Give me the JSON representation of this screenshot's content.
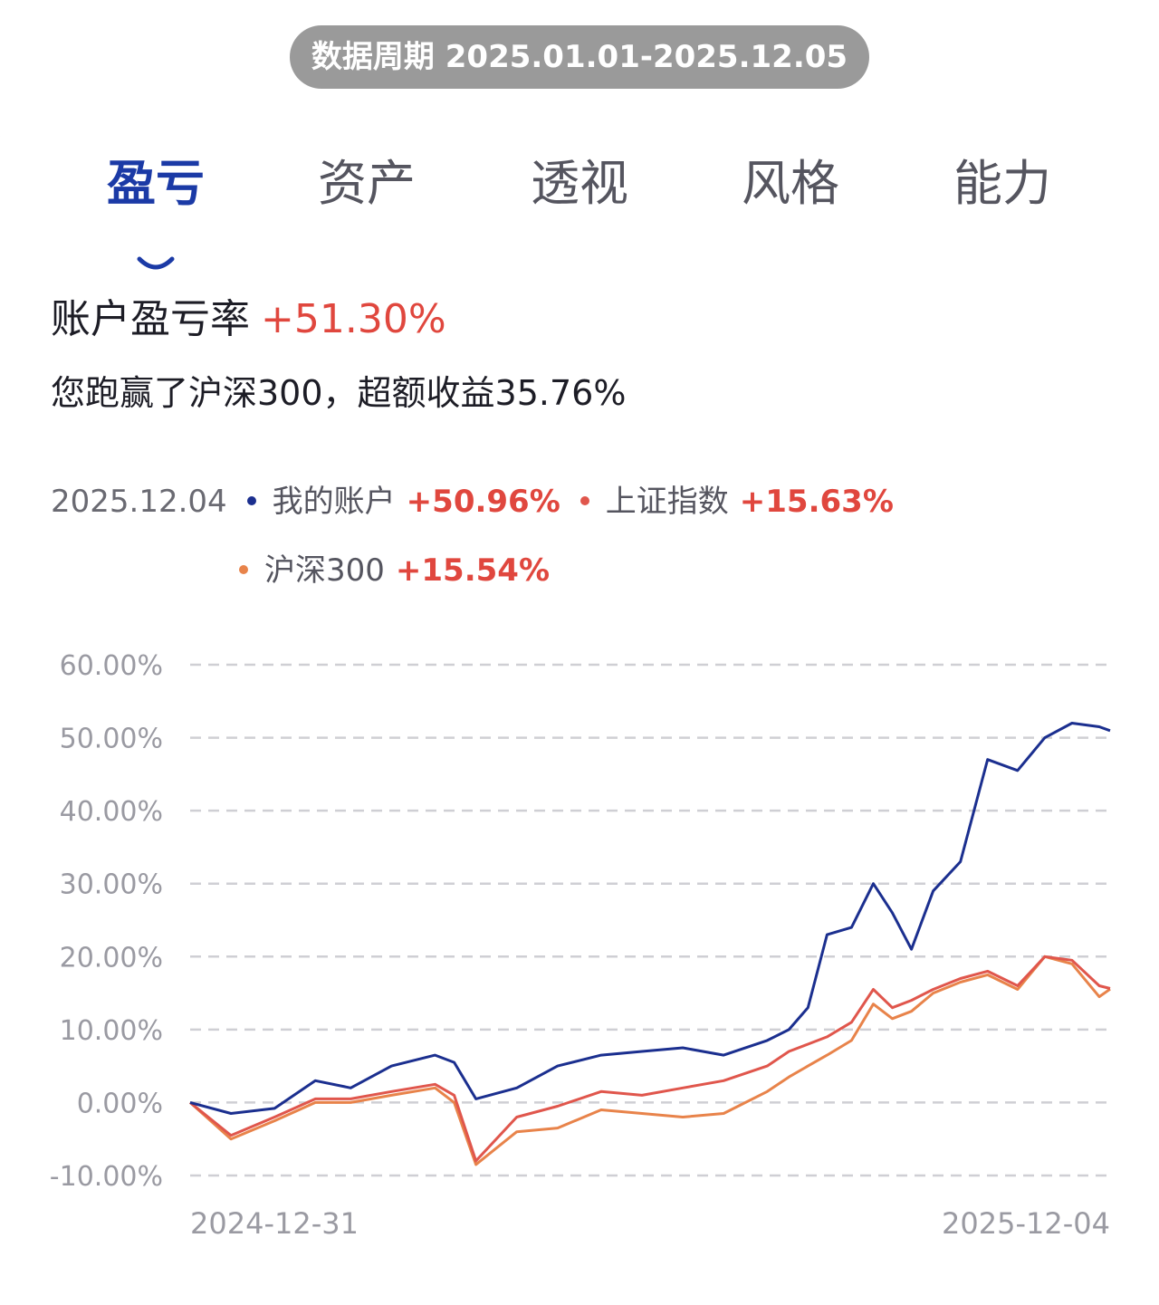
{
  "header": {
    "period_label": "数据周期 2025.01.01-2025.12.05"
  },
  "tabs": [
    {
      "label": "盈亏",
      "active": true
    },
    {
      "label": "资产",
      "active": false
    },
    {
      "label": "透视",
      "active": false
    },
    {
      "label": "风格",
      "active": false
    },
    {
      "label": "能力",
      "active": false
    }
  ],
  "summary": {
    "label": "账户盈亏率",
    "value": "+51.30%",
    "comparison": "您跑赢了沪深300，超额收益35.76%"
  },
  "legend": {
    "date": "2025.12.04",
    "items": [
      {
        "name": "我的账户",
        "value": "+50.96%",
        "color": "#1b2f8f"
      },
      {
        "name": "上证指数",
        "value": "+15.63%",
        "color": "#e0564c"
      },
      {
        "name": "沪深300",
        "value": "+15.54%",
        "color": "#e8834a"
      }
    ]
  },
  "colors": {
    "accent": "#1b3aa6",
    "positive": "#e0473e",
    "grid": "#cfcfd4",
    "axis_text": "#9a9aa2"
  },
  "chart_data": {
    "type": "line",
    "x": [
      "2024-12-31",
      "2025-01-15",
      "2025-01-31",
      "2025-02-15",
      "2025-02-28",
      "2025-03-15",
      "2025-03-31",
      "2025-04-07",
      "2025-04-15",
      "2025-04-30",
      "2025-05-15",
      "2025-05-31",
      "2025-06-15",
      "2025-06-30",
      "2025-07-15",
      "2025-07-31",
      "2025-08-08",
      "2025-08-15",
      "2025-08-22",
      "2025-08-31",
      "2025-09-08",
      "2025-09-15",
      "2025-09-22",
      "2025-09-30",
      "2025-10-10",
      "2025-10-20",
      "2025-10-31",
      "2025-11-10",
      "2025-11-20",
      "2025-11-30",
      "2025-12-04"
    ],
    "series": [
      {
        "name": "我的账户",
        "values": [
          0,
          -1.5,
          -0.8,
          3.0,
          2.0,
          5.0,
          6.5,
          5.5,
          0.5,
          2.0,
          5.0,
          6.5,
          7.0,
          7.5,
          6.5,
          8.5,
          10.0,
          13.0,
          23.0,
          24.0,
          30.0,
          26.0,
          21.0,
          29.0,
          33.0,
          47.0,
          45.5,
          50.0,
          52.0,
          51.5,
          50.96
        ]
      },
      {
        "name": "上证指数",
        "values": [
          0,
          -4.5,
          -2.0,
          0.5,
          0.5,
          1.5,
          2.5,
          1.0,
          -8.0,
          -2.0,
          -0.5,
          1.5,
          1.0,
          2.0,
          3.0,
          5.0,
          7.0,
          8.0,
          9.0,
          11.0,
          15.5,
          13.0,
          14.0,
          15.5,
          17.0,
          18.0,
          16.0,
          20.0,
          19.5,
          16.0,
          15.63
        ]
      },
      {
        "name": "沪深300",
        "values": [
          0,
          -5.0,
          -2.5,
          0.0,
          0.0,
          1.0,
          2.0,
          0.0,
          -8.5,
          -4.0,
          -3.5,
          -1.0,
          -1.5,
          -2.0,
          -1.5,
          1.5,
          3.5,
          5.0,
          6.5,
          8.5,
          13.5,
          11.5,
          12.5,
          15.0,
          16.5,
          17.5,
          15.5,
          20.0,
          19.0,
          14.5,
          15.54
        ]
      }
    ],
    "y_ticks": [
      "60.00%",
      "50.00%",
      "40.00%",
      "30.00%",
      "20.00%",
      "10.00%",
      "0.00%",
      "-10.00%"
    ],
    "x_tick_labels": [
      "2024-12-31",
      "2025-12-04"
    ],
    "ylim": [
      -10,
      60
    ],
    "grid": true
  }
}
